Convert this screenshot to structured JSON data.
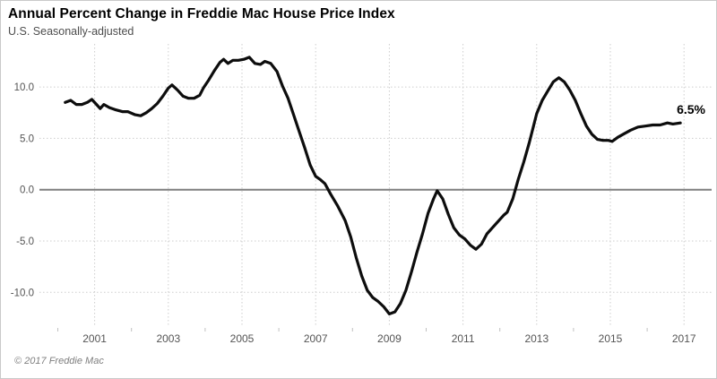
{
  "footer": {
    "copyright": "© 2017 Freddie Mac"
  },
  "colors": {
    "line": "#0d0d0d",
    "zero_axis": "#7f7f7f",
    "grid": "#cdcdcd",
    "minor_tick": "#c0c0c0",
    "tick_text": "#545454",
    "title": "#000000",
    "subtitle": "#4d4d4d",
    "annotation": "#000000"
  },
  "chart_data": {
    "type": "line",
    "title": "Annual Percent Change in Freddie Mac House Price Index",
    "subtitle": "U.S. Seasonally-adjusted",
    "xlabel": "",
    "ylabel": "",
    "xlim": [
      1999.5,
      2017.75
    ],
    "ylim": [
      -13.2,
      14.2
    ],
    "x_ticks": [
      2001,
      2003,
      2005,
      2007,
      2009,
      2011,
      2013,
      2015,
      2017
    ],
    "x_minor_ticks": [
      2000,
      2002,
      2004,
      2006,
      2008,
      2010,
      2012,
      2014,
      2016
    ],
    "y_ticks": [
      10,
      5,
      0,
      -5,
      -10
    ],
    "y_tick_labels": [
      "10.0",
      "5.0",
      "0.0",
      "-5.0",
      "-10.0"
    ],
    "grid": "dotted",
    "legend": "none",
    "annotation": {
      "text": "6.5%",
      "x": 2016.9,
      "y": 6.5
    },
    "series": [
      {
        "name": "annual-percent-change",
        "x": [
          2000.2,
          2000.35,
          2000.5,
          2000.65,
          2000.8,
          2000.92,
          2001.05,
          2001.15,
          2001.25,
          2001.4,
          2001.55,
          2001.75,
          2001.9,
          2002.1,
          2002.25,
          2002.4,
          2002.55,
          2002.7,
          2002.85,
          2003.0,
          2003.1,
          2003.25,
          2003.4,
          2003.55,
          2003.7,
          2003.85,
          2003.95,
          2004.1,
          2004.25,
          2004.4,
          2004.5,
          2004.62,
          2004.75,
          2004.9,
          2005.05,
          2005.2,
          2005.35,
          2005.5,
          2005.62,
          2005.78,
          2005.95,
          2006.1,
          2006.25,
          2006.4,
          2006.55,
          2006.7,
          2006.85,
          2007.0,
          2007.12,
          2007.25,
          2007.4,
          2007.6,
          2007.8,
          2007.95,
          2008.1,
          2008.25,
          2008.4,
          2008.55,
          2008.7,
          2008.85,
          2009.0,
          2009.15,
          2009.3,
          2009.45,
          2009.6,
          2009.75,
          2009.9,
          2010.05,
          2010.2,
          2010.3,
          2010.45,
          2010.6,
          2010.75,
          2010.9,
          2011.05,
          2011.2,
          2011.35,
          2011.5,
          2011.65,
          2011.8,
          2011.95,
          2012.1,
          2012.2,
          2012.35,
          2012.5,
          2012.65,
          2012.8,
          2013.0,
          2013.15,
          2013.3,
          2013.45,
          2013.6,
          2013.75,
          2013.9,
          2014.05,
          2014.2,
          2014.35,
          2014.5,
          2014.65,
          2014.8,
          2014.95,
          2015.05,
          2015.2,
          2015.35,
          2015.55,
          2015.75,
          2015.95,
          2016.15,
          2016.35,
          2016.55,
          2016.7,
          2016.9
        ],
        "y": [
          8.5,
          8.7,
          8.3,
          8.3,
          8.5,
          8.8,
          8.3,
          7.9,
          8.3,
          8.0,
          7.8,
          7.6,
          7.6,
          7.3,
          7.2,
          7.5,
          7.9,
          8.4,
          9.1,
          9.9,
          10.2,
          9.7,
          9.1,
          8.9,
          8.9,
          9.2,
          9.9,
          10.7,
          11.6,
          12.4,
          12.7,
          12.3,
          12.6,
          12.6,
          12.7,
          12.9,
          12.3,
          12.2,
          12.5,
          12.3,
          11.5,
          10.1,
          8.9,
          7.3,
          5.7,
          4.1,
          2.4,
          1.3,
          1.0,
          0.6,
          -0.4,
          -1.6,
          -3.0,
          -4.6,
          -6.6,
          -8.4,
          -9.8,
          -10.5,
          -10.9,
          -11.4,
          -12.1,
          -11.9,
          -11.1,
          -9.8,
          -8.0,
          -6.1,
          -4.3,
          -2.3,
          -0.9,
          -0.1,
          -0.9,
          -2.4,
          -3.7,
          -4.4,
          -4.8,
          -5.4,
          -5.8,
          -5.3,
          -4.3,
          -3.7,
          -3.1,
          -2.5,
          -2.2,
          -0.9,
          1.0,
          2.7,
          4.6,
          7.4,
          8.7,
          9.6,
          10.5,
          10.9,
          10.5,
          9.7,
          8.7,
          7.4,
          6.2,
          5.4,
          4.9,
          4.8,
          4.8,
          4.7,
          5.1,
          5.4,
          5.8,
          6.1,
          6.2,
          6.3,
          6.3,
          6.5,
          6.4,
          6.5
        ]
      }
    ]
  }
}
